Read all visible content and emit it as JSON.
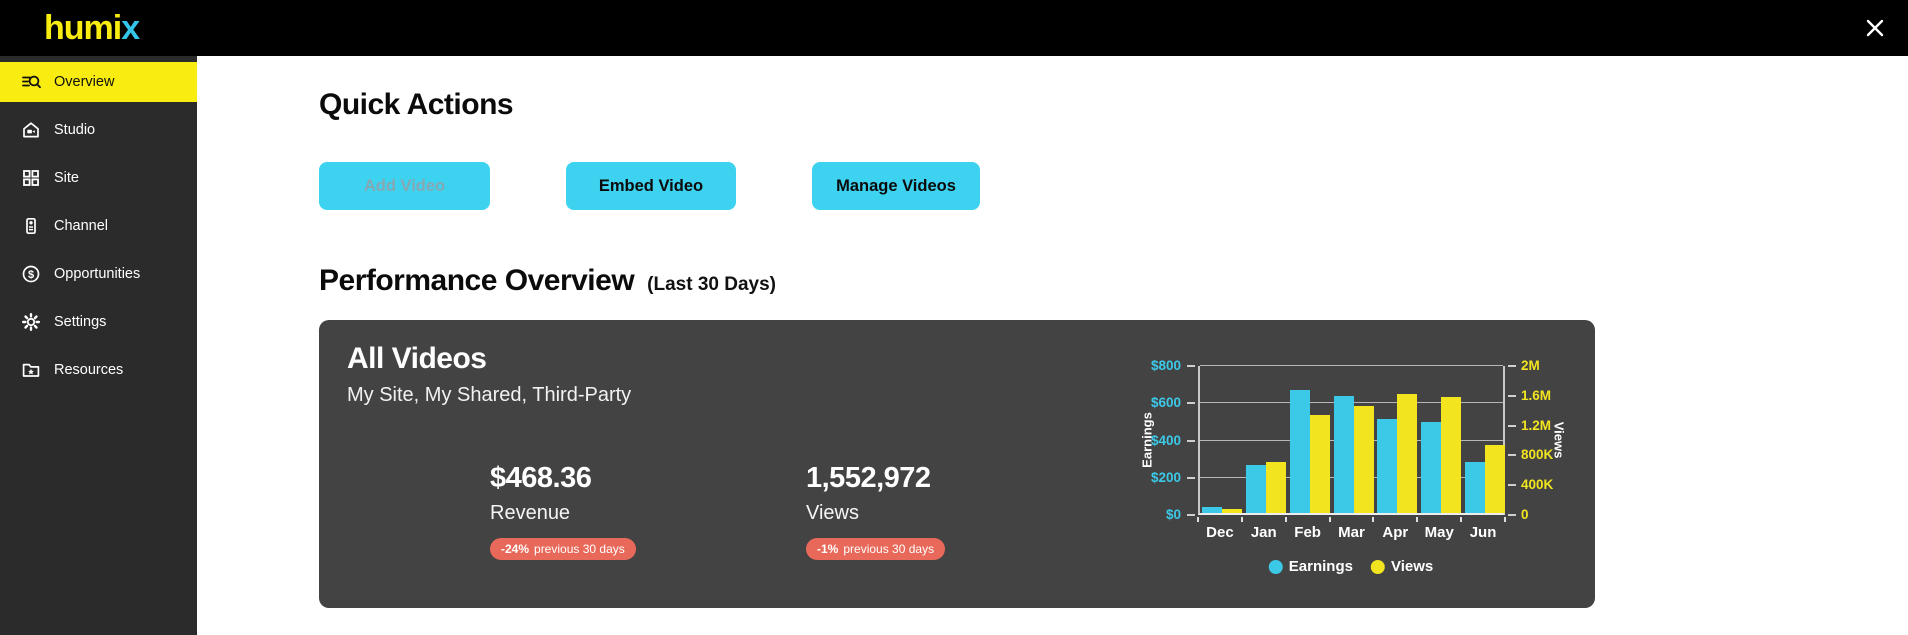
{
  "header": {
    "logo_prefix": "humi",
    "logo_suffix": "x"
  },
  "sidebar": {
    "items": [
      {
        "label": "Overview",
        "icon": "overview-search-icon",
        "active": true
      },
      {
        "label": "Studio",
        "icon": "studio-house-icon",
        "active": false
      },
      {
        "label": "Site",
        "icon": "site-grid-icon",
        "active": false
      },
      {
        "label": "Channel",
        "icon": "channel-icon",
        "active": false
      },
      {
        "label": "Opportunities",
        "icon": "dollar-circle-icon",
        "active": false
      },
      {
        "label": "Settings",
        "icon": "gear-icon",
        "active": false
      },
      {
        "label": "Resources",
        "icon": "folder-star-icon",
        "active": false
      }
    ]
  },
  "quick_actions": {
    "title": "Quick Actions",
    "buttons": [
      {
        "label": "Add Video",
        "disabled": true
      },
      {
        "label": "Embed Video",
        "disabled": false
      },
      {
        "label": "Manage Videos",
        "disabled": false
      }
    ]
  },
  "performance": {
    "title": "Performance Overview",
    "subtitle": "(Last 30 Days)",
    "card": {
      "title": "All Videos",
      "subtitle": "My Site, My Shared, Third-Party",
      "stats": [
        {
          "value": "$468.36",
          "label": "Revenue",
          "badge_value": "-24%",
          "badge_text": "previous 30 days"
        },
        {
          "value": "1,552,972",
          "label": "Views",
          "badge_value": "-1%",
          "badge_text": "previous 30 days"
        }
      ]
    }
  },
  "chart_data": {
    "type": "bar",
    "categories": [
      "Dec",
      "Jan",
      "Feb",
      "Mar",
      "Apr",
      "May",
      "Jun"
    ],
    "series": [
      {
        "name": "Earnings",
        "axis": "left",
        "color": "#3CC9E8",
        "values": [
          30,
          260,
          660,
          630,
          505,
          490,
          275
        ]
      },
      {
        "name": "Views",
        "axis": "right",
        "color": "#F2E41F",
        "values": [
          50000,
          690000,
          1310000,
          1430000,
          1600000,
          1560000,
          915000
        ]
      }
    ],
    "left_axis": {
      "label": "Earnings",
      "min": 0,
      "max": 800,
      "ticks": [
        "$0",
        "$200",
        "$400",
        "$600",
        "$800"
      ],
      "tick_color": "#3CC9E8"
    },
    "right_axis": {
      "label": "Views",
      "min": 0,
      "max": 2000000,
      "ticks": [
        "0",
        "400K",
        "800K",
        "1.2M",
        "1.6M",
        "2M"
      ],
      "tick_color": "#F2E41F"
    },
    "legend": [
      "Earnings",
      "Views"
    ],
    "legend_position": "bottom",
    "grid": true
  },
  "colors": {
    "brand_yellow": "#F8EC11",
    "brand_cyan": "#35C4EA",
    "button_cyan": "#3DD2EF",
    "bar_cyan": "#3CC9E8",
    "bar_yellow": "#F2E41F",
    "card_background": "#434343",
    "sidebar_background": "#2B2B2B",
    "badge_red": "#E8695A"
  }
}
